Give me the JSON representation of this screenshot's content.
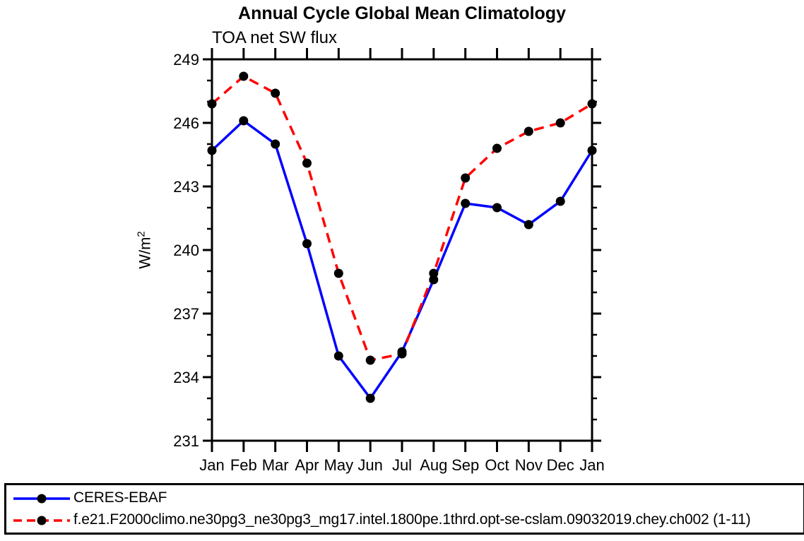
{
  "chart_data": {
    "type": "line",
    "title": "Annual Cycle Global Mean Climatology",
    "subtitle": "TOA net SW flux",
    "ylabel_base": "W/m",
    "ylabel_sup": "2",
    "categories": [
      "Jan",
      "Feb",
      "Mar",
      "Apr",
      "May",
      "Jun",
      "Jul",
      "Aug",
      "Sep",
      "Oct",
      "Nov",
      "Dec",
      "Jan"
    ],
    "ylim": [
      231,
      249
    ],
    "ytick_major_step": 3,
    "ytick_minor_step": 1,
    "ytick_major_labels": [
      "249",
      "246",
      "243",
      "240",
      "237",
      "234",
      "231"
    ],
    "grid": false,
    "legend_position": "bottom",
    "axis_color": "#000000",
    "marker_color": "#000000",
    "series": [
      {
        "name": "CERES-EBAF",
        "color": "#0000ff",
        "line_style": "solid",
        "dash": "none",
        "values": [
          244.7,
          246.1,
          245.0,
          240.3,
          235.0,
          233.0,
          235.2,
          238.6,
          242.2,
          242.0,
          241.2,
          242.3,
          244.7
        ]
      },
      {
        "name": "f.e21.F2000climo.ne30pg3_ne30pg3_mg17.intel.1800pe.1thrd.opt-se-cslam.09032019.chey.ch002 (1-11)",
        "color": "#ff0000",
        "line_style": "dashed",
        "dash": "14 9",
        "values": [
          246.9,
          248.2,
          247.4,
          244.1,
          238.9,
          234.8,
          235.1,
          238.9,
          243.4,
          244.8,
          245.6,
          246.0,
          246.9
        ]
      }
    ]
  }
}
